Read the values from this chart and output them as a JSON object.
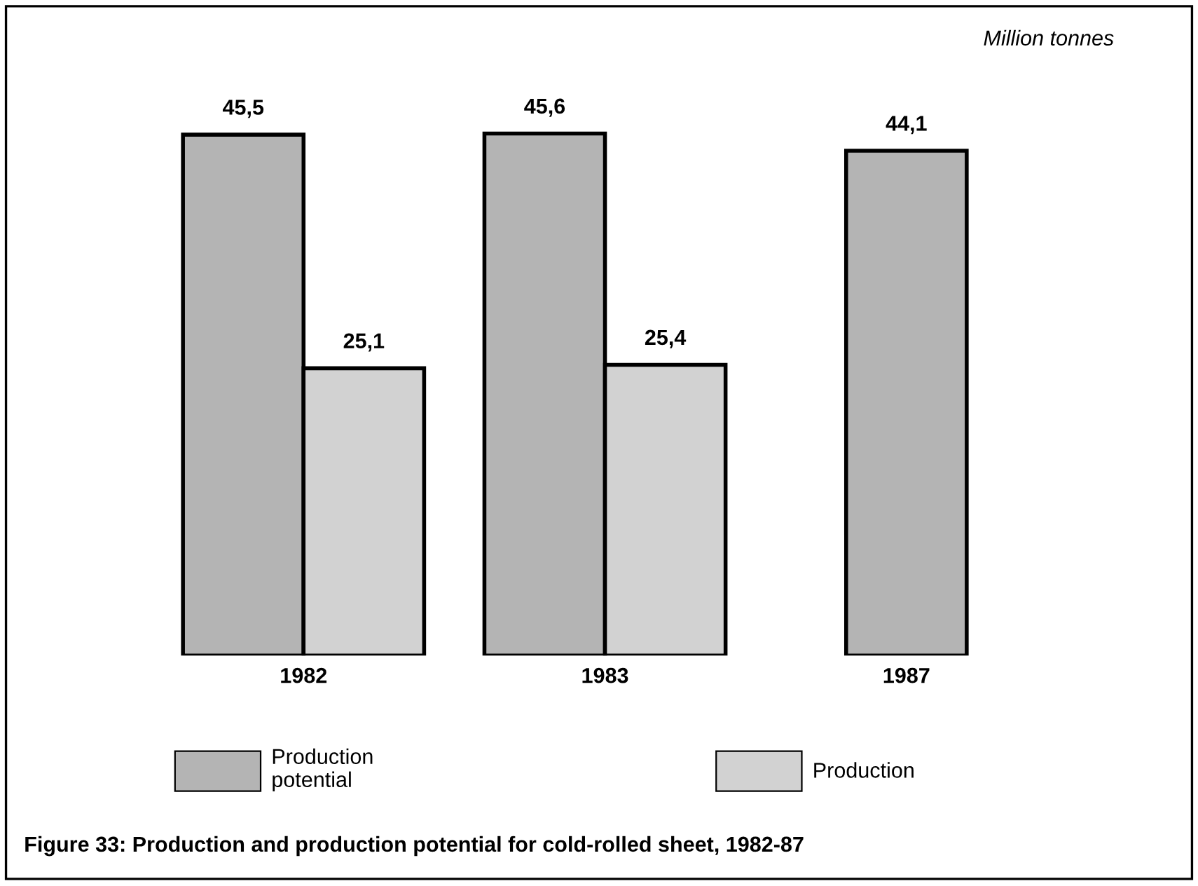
{
  "chart_data": {
    "type": "bar",
    "title": "Figure 33: Production and production potential for cold-rolled sheet, 1982-87",
    "annotations": [
      "Million tonnes"
    ],
    "categories": [
      "1982",
      "1983",
      "1987"
    ],
    "series": [
      {
        "name": "Production\npotential",
        "color": "#b4b4b4",
        "values": [
          45.5,
          45.6,
          44.1
        ],
        "value_labels": [
          "45,5",
          "45,6",
          "44,1"
        ]
      },
      {
        "name": "Production",
        "color": "#d2d2d2",
        "values": [
          25.1,
          25.4,
          null
        ],
        "value_labels": [
          "25,1",
          "25,4",
          null
        ]
      }
    ],
    "legend": "bottom",
    "grid": false
  }
}
